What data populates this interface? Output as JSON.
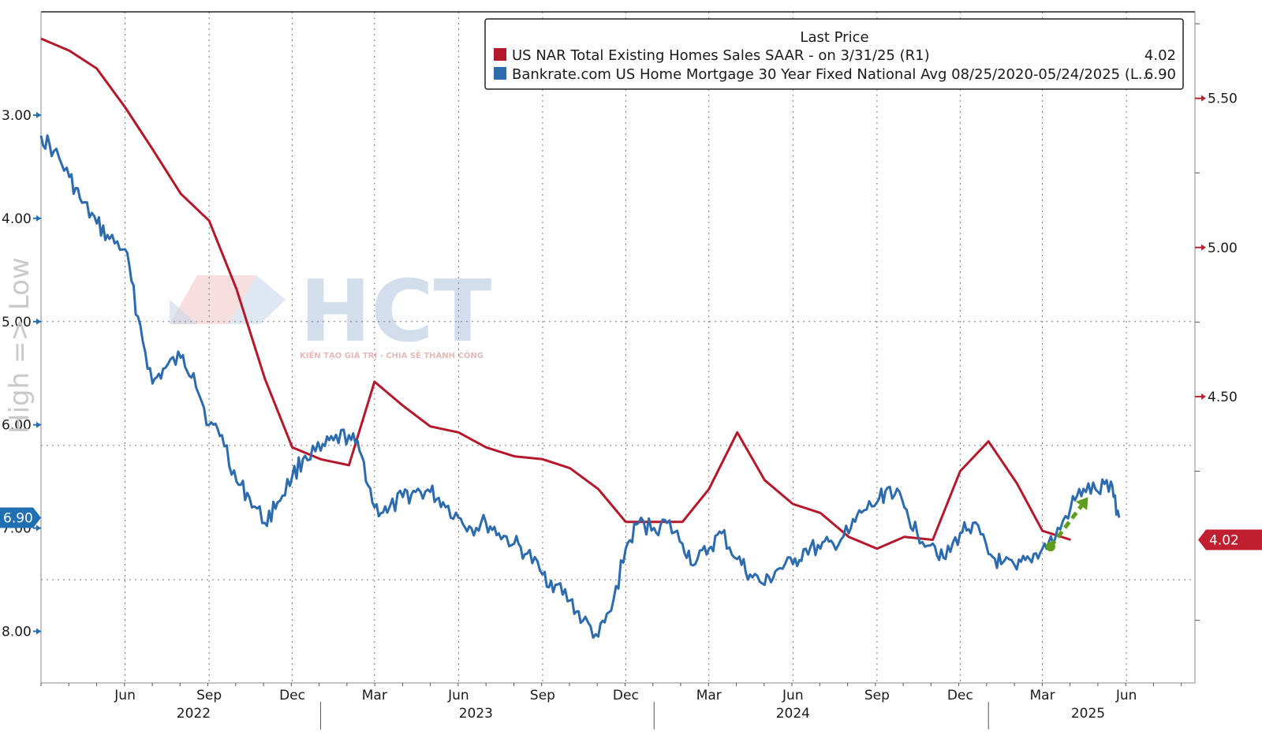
{
  "chart_data": {
    "type": "line",
    "side_label": "High => Low",
    "watermark": {
      "name": "HCT",
      "tagline": "KIẾN TẠO GIÁ TRỊ - CHIA SẺ THÀNH CÔNG"
    },
    "legend": {
      "header": "Last Price",
      "placement": "top-right"
    },
    "x_axis": {
      "month_labels": [
        {
          "label": "Jun",
          "date": "2022-06-01"
        },
        {
          "label": "Sep",
          "date": "2022-09-01"
        },
        {
          "label": "Dec",
          "date": "2022-12-01"
        },
        {
          "label": "Mar",
          "date": "2023-03-01"
        },
        {
          "label": "Jun",
          "date": "2023-06-01"
        },
        {
          "label": "Sep",
          "date": "2023-09-01"
        },
        {
          "label": "Dec",
          "date": "2023-12-01"
        },
        {
          "label": "Mar",
          "date": "2024-03-01"
        },
        {
          "label": "Jun",
          "date": "2024-06-01"
        },
        {
          "label": "Sep",
          "date": "2024-09-01"
        },
        {
          "label": "Dec",
          "date": "2024-12-01"
        },
        {
          "label": "Mar",
          "date": "2025-03-01"
        },
        {
          "label": "Jun",
          "date": "2025-06-01"
        }
      ],
      "year_labels": [
        {
          "label": "2022",
          "date": "2022-08-15"
        },
        {
          "label": "2023",
          "date": "2023-06-20"
        },
        {
          "label": "2024",
          "date": "2024-06-01"
        },
        {
          "label": "2025",
          "date": "2025-04-20"
        }
      ],
      "year_dividers": [
        "2023-01-01",
        "2024-01-01",
        "2025-01-01"
      ],
      "range": [
        "2022-03-01",
        "2025-08-15"
      ]
    },
    "left_axis": {
      "inverted": true,
      "range": [
        2.0,
        8.5
      ],
      "ticks": [
        "3.00",
        "4.00",
        "5.00",
        "6.00",
        "7.00",
        "8.00"
      ],
      "gridlines": [
        5.0,
        6.2,
        7.5
      ],
      "last_value_label": "6.90",
      "last_value": 6.9,
      "color": "#1f6fb2"
    },
    "right_axis": {
      "range": [
        3.54,
        5.79
      ],
      "ticks": [
        "5.50",
        "5.00",
        "4.50"
      ],
      "minor_ticks": [
        5.75,
        5.25,
        4.75,
        4.25,
        3.75
      ],
      "last_value_label": "4.02",
      "last_value": 4.02,
      "color": "#c01f2f"
    },
    "series": [
      {
        "name": "US NAR Total Existing Homes Sales SAAR -  on 3/31/25  (R1)",
        "last_price": "4.02",
        "color": "#b5182b",
        "axis": "right",
        "points": [
          [
            "2022-03-01",
            5.7
          ],
          [
            "2022-04-01",
            5.66
          ],
          [
            "2022-05-01",
            5.6
          ],
          [
            "2022-06-01",
            5.47
          ],
          [
            "2022-07-01",
            5.33
          ],
          [
            "2022-08-01",
            5.18
          ],
          [
            "2022-09-01",
            5.09
          ],
          [
            "2022-10-01",
            4.86
          ],
          [
            "2022-11-01",
            4.56
          ],
          [
            "2022-12-01",
            4.33
          ],
          [
            "2023-01-01",
            4.29
          ],
          [
            "2023-02-01",
            4.27
          ],
          [
            "2023-03-01",
            4.55
          ],
          [
            "2023-04-01",
            4.47
          ],
          [
            "2023-05-01",
            4.4
          ],
          [
            "2023-06-01",
            4.38
          ],
          [
            "2023-07-01",
            4.33
          ],
          [
            "2023-08-01",
            4.3
          ],
          [
            "2023-09-01",
            4.29
          ],
          [
            "2023-10-01",
            4.26
          ],
          [
            "2023-11-01",
            4.19
          ],
          [
            "2023-12-01",
            4.08
          ],
          [
            "2024-01-01",
            4.08
          ],
          [
            "2024-02-01",
            4.08
          ],
          [
            "2024-03-01",
            4.19
          ],
          [
            "2024-04-01",
            4.38
          ],
          [
            "2024-05-01",
            4.22
          ],
          [
            "2024-06-01",
            4.14
          ],
          [
            "2024-07-01",
            4.11
          ],
          [
            "2024-08-01",
            4.03
          ],
          [
            "2024-09-01",
            3.99
          ],
          [
            "2024-10-01",
            4.03
          ],
          [
            "2024-11-01",
            4.02
          ],
          [
            "2024-12-01",
            4.25
          ],
          [
            "2025-01-01",
            4.35
          ],
          [
            "2025-02-01",
            4.21
          ],
          [
            "2025-03-01",
            4.05
          ],
          [
            "2025-04-01",
            4.02
          ]
        ]
      },
      {
        "name": "Bankrate.com US Home Mortgage 30 Year Fixed National Avg 08/25/2020-05/24/2025  (L...",
        "last_price": "6.90",
        "color": "#2c6bad",
        "axis": "left",
        "points": [
          [
            "2022-03-01",
            3.2
          ],
          [
            "2022-03-15",
            3.35
          ],
          [
            "2022-04-01",
            3.6
          ],
          [
            "2022-04-15",
            3.85
          ],
          [
            "2022-05-01",
            4.05
          ],
          [
            "2022-05-15",
            4.2
          ],
          [
            "2022-06-01",
            4.3
          ],
          [
            "2022-06-15",
            4.95
          ],
          [
            "2022-07-01",
            5.6
          ],
          [
            "2022-07-15",
            5.45
          ],
          [
            "2022-08-01",
            5.35
          ],
          [
            "2022-08-15",
            5.5
          ],
          [
            "2022-09-01",
            6.0
          ],
          [
            "2022-09-15",
            6.1
          ],
          [
            "2022-10-01",
            6.55
          ],
          [
            "2022-10-15",
            6.7
          ],
          [
            "2022-11-01",
            6.95
          ],
          [
            "2022-11-15",
            6.75
          ],
          [
            "2022-12-01",
            6.5
          ],
          [
            "2022-12-15",
            6.3
          ],
          [
            "2023-01-01",
            6.25
          ],
          [
            "2023-01-15",
            6.15
          ],
          [
            "2023-02-01",
            6.1
          ],
          [
            "2023-02-15",
            6.3
          ],
          [
            "2023-03-01",
            6.8
          ],
          [
            "2023-03-15",
            6.85
          ],
          [
            "2023-04-01",
            6.7
          ],
          [
            "2023-04-15",
            6.65
          ],
          [
            "2023-05-01",
            6.65
          ],
          [
            "2023-05-15",
            6.75
          ],
          [
            "2023-06-01",
            6.9
          ],
          [
            "2023-06-15",
            7.0
          ],
          [
            "2023-07-01",
            6.95
          ],
          [
            "2023-07-15",
            7.05
          ],
          [
            "2023-08-01",
            7.15
          ],
          [
            "2023-08-15",
            7.25
          ],
          [
            "2023-09-01",
            7.45
          ],
          [
            "2023-09-15",
            7.55
          ],
          [
            "2023-10-01",
            7.7
          ],
          [
            "2023-10-15",
            7.9
          ],
          [
            "2023-11-01",
            8.05
          ],
          [
            "2023-11-15",
            7.8
          ],
          [
            "2023-12-01",
            7.2
          ],
          [
            "2023-12-15",
            6.95
          ],
          [
            "2024-01-01",
            7.0
          ],
          [
            "2024-01-15",
            6.95
          ],
          [
            "2024-02-01",
            7.15
          ],
          [
            "2024-02-15",
            7.35
          ],
          [
            "2024-03-01",
            7.2
          ],
          [
            "2024-03-15",
            7.05
          ],
          [
            "2024-04-01",
            7.3
          ],
          [
            "2024-04-15",
            7.45
          ],
          [
            "2024-05-01",
            7.55
          ],
          [
            "2024-05-15",
            7.4
          ],
          [
            "2024-06-01",
            7.35
          ],
          [
            "2024-06-15",
            7.2
          ],
          [
            "2024-07-01",
            7.2
          ],
          [
            "2024-07-15",
            7.15
          ],
          [
            "2024-08-01",
            7.05
          ],
          [
            "2024-08-15",
            6.85
          ],
          [
            "2024-09-01",
            6.75
          ],
          [
            "2024-09-15",
            6.6
          ],
          [
            "2024-10-01",
            6.8
          ],
          [
            "2024-10-15",
            7.05
          ],
          [
            "2024-11-01",
            7.15
          ],
          [
            "2024-11-15",
            7.3
          ],
          [
            "2024-12-01",
            7.05
          ],
          [
            "2024-12-15",
            6.95
          ],
          [
            "2025-01-01",
            7.25
          ],
          [
            "2025-01-15",
            7.35
          ],
          [
            "2025-02-01",
            7.4
          ],
          [
            "2025-02-15",
            7.3
          ],
          [
            "2025-03-01",
            7.2
          ],
          [
            "2025-03-15",
            7.1
          ],
          [
            "2025-04-01",
            6.8
          ],
          [
            "2025-04-15",
            6.62
          ],
          [
            "2025-05-01",
            6.65
          ],
          [
            "2025-05-15",
            6.55
          ],
          [
            "2025-05-24",
            6.9
          ]
        ]
      }
    ],
    "annotations": [
      {
        "type": "arrow",
        "color": "#5e9d1b",
        "style": "dashed",
        "from": [
          "2025-03-10",
          7.18
        ],
        "to": [
          "2025-04-20",
          6.7
        ]
      }
    ]
  }
}
